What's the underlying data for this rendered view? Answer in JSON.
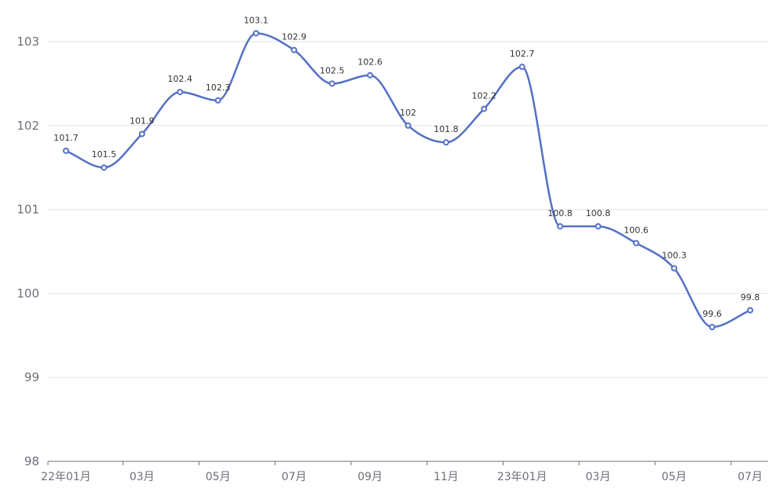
{
  "chart_data": {
    "type": "line",
    "title": "",
    "xlabel": "",
    "ylabel": "",
    "x": [
      "22年01月",
      "22年02月",
      "22年03月",
      "22年04月",
      "22年05月",
      "22年06月",
      "22年07月",
      "22年08月",
      "22年09月",
      "22年10月",
      "22年11月",
      "22年12月",
      "23年01月",
      "23年02月",
      "23年03月",
      "23年04月",
      "23年05月",
      "23年06月",
      "23年07月"
    ],
    "x_tick_labels": [
      "22年01月",
      "03月",
      "05月",
      "07月",
      "09月",
      "11月",
      "23年01月",
      "03月",
      "05月",
      "07月"
    ],
    "x_tick_label_indices": [
      0,
      2,
      4,
      6,
      8,
      10,
      12,
      14,
      16,
      18
    ],
    "series": [
      {
        "values": [
          101.7,
          101.5,
          101.9,
          102.4,
          102.3,
          103.1,
          102.9,
          102.5,
          102.6,
          102.0,
          101.8,
          102.2,
          102.7,
          100.8,
          100.8,
          100.6,
          100.3,
          99.6,
          99.8
        ],
        "labels": [
          "101.7",
          "101.5",
          "101.9",
          "102.4",
          "102.3",
          "103.1",
          "102.9",
          "102.5",
          "102.6",
          "102",
          "101.8",
          "102.2",
          "102.7",
          "100.8",
          "100.8",
          "100.6",
          "100.3",
          "99.6",
          "99.8"
        ]
      }
    ],
    "ylim": [
      98,
      103
    ],
    "y_ticks": [
      "98",
      "99",
      "100",
      "101",
      "102",
      "103"
    ],
    "y_tick_values": [
      98,
      99,
      100,
      101,
      102,
      103
    ],
    "grid": true,
    "smooth": true,
    "legend": "none",
    "colors": {
      "line": "#5470c6",
      "grid": "#e3e6f0",
      "axis": "#6e7079"
    }
  }
}
